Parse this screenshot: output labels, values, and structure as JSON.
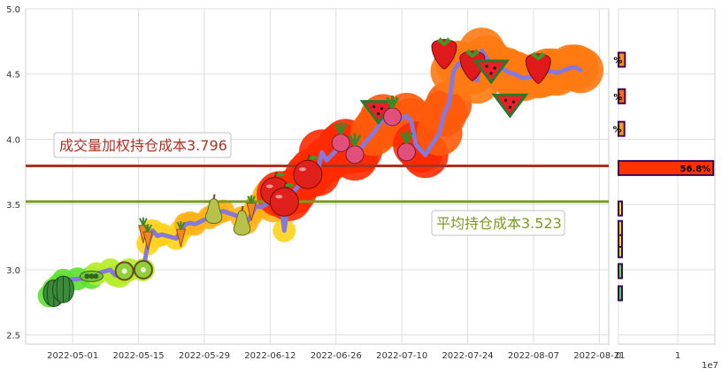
{
  "chart_data": [
    {
      "type": "line",
      "title": "",
      "xlabel": "",
      "ylabel": "",
      "x_ticks": [
        "2022-05-01",
        "2022-05-15",
        "2022-05-29",
        "2022-06-12",
        "2022-06-26",
        "2022-07-10",
        "2022-07-24",
        "2022-08-07",
        "2022-08-21"
      ],
      "y_ticks": [
        "2.5",
        "3.0",
        "3.5",
        "4.0",
        "4.5",
        "5.0"
      ],
      "xlim": [
        "2022-04-21",
        "2022-08-23"
      ],
      "ylim": [
        2.43,
        5.0
      ],
      "grid": true,
      "series": [
        {
          "color": "#8878d8",
          "x": [
            "2022-04-26",
            "2022-04-27",
            "2022-04-28",
            "2022-04-29",
            "2022-05-02",
            "2022-05-05",
            "2022-05-06",
            "2022-05-09",
            "2022-05-10",
            "2022-05-11",
            "2022-05-12",
            "2022-05-13",
            "2022-05-16",
            "2022-05-17",
            "2022-05-18",
            "2022-05-19",
            "2022-05-20",
            "2022-05-23",
            "2022-05-24",
            "2022-05-25",
            "2022-05-26",
            "2022-05-27",
            "2022-05-30",
            "2022-05-31",
            "2022-06-01",
            "2022-06-02",
            "2022-06-06",
            "2022-06-07",
            "2022-06-08",
            "2022-06-09",
            "2022-06-10",
            "2022-06-13",
            "2022-06-14",
            "2022-06-15",
            "2022-06-16",
            "2022-06-17",
            "2022-06-20",
            "2022-06-21",
            "2022-06-22",
            "2022-06-23",
            "2022-06-24",
            "2022-06-27",
            "2022-06-28",
            "2022-06-29",
            "2022-06-30",
            "2022-07-01",
            "2022-07-04",
            "2022-07-05",
            "2022-07-06",
            "2022-07-07",
            "2022-07-08",
            "2022-07-11",
            "2022-07-12",
            "2022-07-13",
            "2022-07-14",
            "2022-07-15",
            "2022-07-18",
            "2022-07-19",
            "2022-07-20",
            "2022-07-21",
            "2022-07-22",
            "2022-07-25",
            "2022-07-26",
            "2022-07-27",
            "2022-07-28",
            "2022-07-29",
            "2022-08-01",
            "2022-08-02",
            "2022-08-03",
            "2022-08-04",
            "2022-08-05",
            "2022-08-08",
            "2022-08-09",
            "2022-08-10",
            "2022-08-11",
            "2022-08-12",
            "2022-08-15",
            "2022-08-16",
            "2022-08-17"
          ],
          "values": [
            2.8,
            2.85,
            2.88,
            2.92,
            2.93,
            2.94,
            2.97,
            3.0,
            2.96,
            2.95,
            2.98,
            3.0,
            3.0,
            3.2,
            3.3,
            3.26,
            3.27,
            3.24,
            3.3,
            3.35,
            3.36,
            3.35,
            3.4,
            3.42,
            3.44,
            3.45,
            3.4,
            3.36,
            3.42,
            3.49,
            3.48,
            3.54,
            3.58,
            3.3,
            3.55,
            3.6,
            3.72,
            3.76,
            3.74,
            3.9,
            3.84,
            3.95,
            3.98,
            3.91,
            3.86,
            3.92,
            4.05,
            4.1,
            4.17,
            4.12,
            4.12,
            4.18,
            4.14,
            3.96,
            3.92,
            3.88,
            4.05,
            4.2,
            4.27,
            4.52,
            4.58,
            4.52,
            4.45,
            4.68,
            4.62,
            4.58,
            4.53,
            4.51,
            4.5,
            4.48,
            4.47,
            4.49,
            4.5,
            4.52,
            4.52,
            4.51,
            4.55,
            4.55,
            4.53
          ]
        }
      ]
    },
    {
      "type": "bar",
      "orientation": "horizontal",
      "x_ticks": [
        "0",
        "1"
      ],
      "x_multiplier": "1e7",
      "bars": [
        {
          "price": 2.82,
          "value": 220000,
          "color": "#4cd84c",
          "label": ""
        },
        {
          "price": 2.99,
          "value": 200000,
          "color": "#66e033",
          "label": ""
        },
        {
          "price": 3.15,
          "value": 260000,
          "color": "#c8e82a",
          "label": ""
        },
        {
          "price": 3.23,
          "value": 300000,
          "color": "#ffd21a",
          "label": ""
        },
        {
          "price": 3.32,
          "value": 330000,
          "color": "#ffd21a",
          "label": ""
        },
        {
          "price": 3.47,
          "value": 320000,
          "color": "#ffd21a",
          "label": ""
        },
        {
          "price": 3.78,
          "value": 16000000,
          "color": "#ff3300",
          "label": "56.8%"
        },
        {
          "price": 4.08,
          "value": 1000000,
          "color": "#ff9a1f",
          "label": "%"
        },
        {
          "price": 4.33,
          "value": 1100000,
          "color": "#ff6a10",
          "label": "%"
        },
        {
          "price": 4.61,
          "value": 1100000,
          "color": "#ff8c1a",
          "label": "%"
        }
      ]
    }
  ],
  "annotations": {
    "weighted_cost_label": "成交量加权持仓成本3.796",
    "weighted_cost_value": 3.796,
    "weighted_cost_color": "#b03020",
    "avg_cost_label": "平均持仓成本3.523",
    "avg_cost_value": 3.523,
    "avg_cost_color": "#7a9a20"
  },
  "markers": [
    {
      "date": "2022-04-27",
      "value": 2.82,
      "icon": "watermelon-icon"
    },
    {
      "date": "2022-04-29",
      "value": 2.85,
      "icon": "watermelon-icon"
    },
    {
      "date": "2022-05-05",
      "value": 2.95,
      "icon": "pea-pod-icon"
    },
    {
      "date": "2022-05-12",
      "value": 2.99,
      "icon": "kiwi-icon"
    },
    {
      "date": "2022-05-16",
      "value": 3.0,
      "icon": "kiwi-icon"
    },
    {
      "date": "2022-05-16",
      "value": 3.3,
      "icon": "carrot-icon"
    },
    {
      "date": "2022-05-17",
      "value": 3.25,
      "icon": "carrot-icon"
    },
    {
      "date": "2022-05-24",
      "value": 3.27,
      "icon": "carrot-icon"
    },
    {
      "date": "2022-05-31",
      "value": 3.45,
      "icon": "pear-icon"
    },
    {
      "date": "2022-06-06",
      "value": 3.36,
      "icon": "pear-icon"
    },
    {
      "date": "2022-06-08",
      "value": 3.47,
      "icon": "carrot-icon"
    },
    {
      "date": "2022-06-13",
      "value": 3.6,
      "icon": "apple-icon"
    },
    {
      "date": "2022-06-15",
      "value": 3.52,
      "icon": "apple-icon"
    },
    {
      "date": "2022-06-20",
      "value": 3.73,
      "icon": "apple-icon"
    },
    {
      "date": "2022-06-27",
      "value": 4.0,
      "icon": "radish-icon"
    },
    {
      "date": "2022-06-30",
      "value": 3.91,
      "icon": "radish-icon"
    },
    {
      "date": "2022-07-05",
      "value": 4.25,
      "icon": "watermelon-slice-icon"
    },
    {
      "date": "2022-07-08",
      "value": 4.2,
      "icon": "radish-icon"
    },
    {
      "date": "2022-07-11",
      "value": 3.93,
      "icon": "radish-icon"
    },
    {
      "date": "2022-07-19",
      "value": 4.66,
      "icon": "strawberry-icon"
    },
    {
      "date": "2022-07-25",
      "value": 4.57,
      "icon": "strawberry-icon"
    },
    {
      "date": "2022-07-29",
      "value": 4.56,
      "icon": "watermelon-slice-icon"
    },
    {
      "date": "2022-08-02",
      "value": 4.3,
      "icon": "watermelon-slice-icon"
    },
    {
      "date": "2022-08-08",
      "value": 4.55,
      "icon": "strawberry-icon"
    }
  ]
}
